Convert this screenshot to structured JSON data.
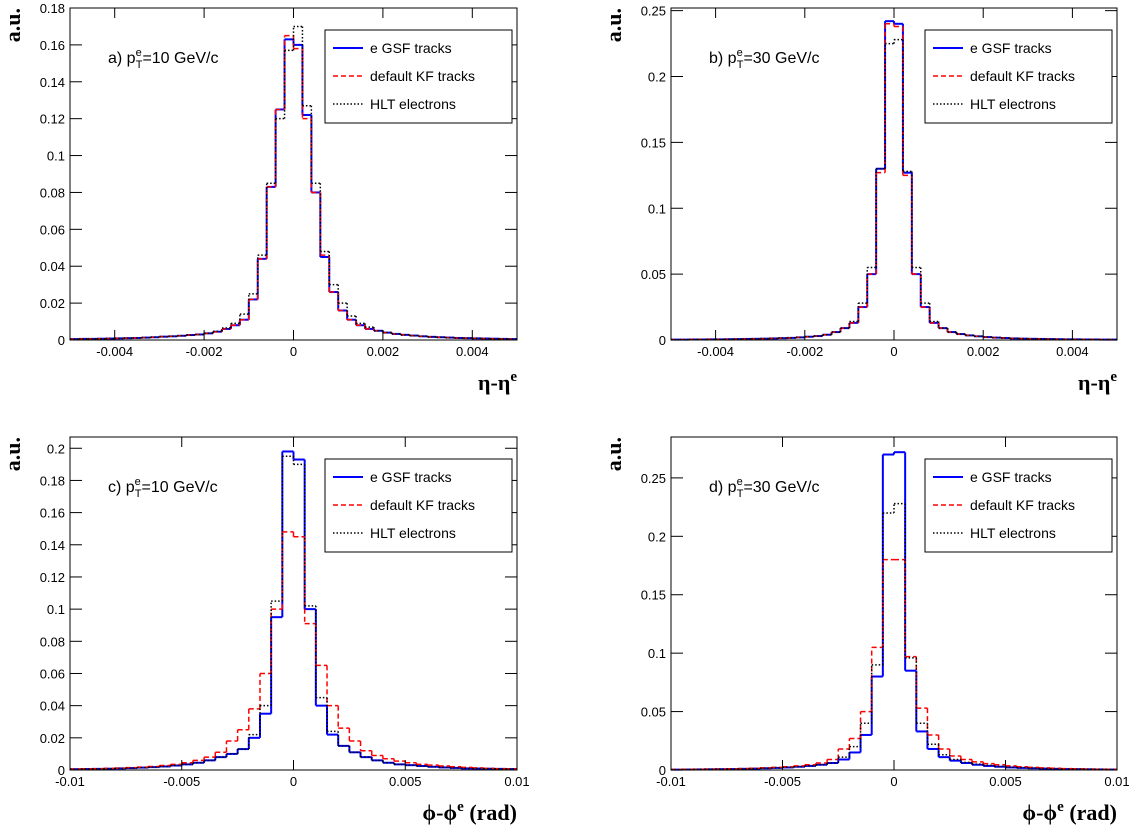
{
  "chart_data": [
    {
      "type": "histogram",
      "ylabel": "a.u.",
      "xlabel": [
        "η-η",
        "e"
      ],
      "annotation": [
        "a) p",
        "e",
        "T",
        "=10 GeV/c"
      ],
      "xlim": [
        -0.005,
        0.005
      ],
      "xticks": [
        -0.004,
        -0.002,
        0,
        0.002,
        0.004
      ],
      "ylim": [
        0,
        0.18
      ],
      "yticks": [
        0,
        0.02,
        0.04,
        0.06,
        0.08,
        0.1,
        0.12,
        0.14,
        0.16,
        0.18
      ],
      "legend": "upper right",
      "bins": [
        -0.005,
        -0.0048,
        -0.0046,
        -0.0044,
        -0.0042,
        -0.004,
        -0.0038,
        -0.0036,
        -0.0034,
        -0.0032,
        -0.003,
        -0.0028,
        -0.0026,
        -0.0024,
        -0.0022,
        -0.002,
        -0.0018,
        -0.0016,
        -0.0014,
        -0.0012,
        -0.001,
        -0.0008,
        -0.0006,
        -0.0004,
        -0.0002,
        0,
        0.0002,
        0.0004,
        0.0006,
        0.0008,
        0.001,
        0.0012,
        0.0014,
        0.0016,
        0.0018,
        0.002,
        0.0022,
        0.0024,
        0.0026,
        0.0028,
        0.003,
        0.0032,
        0.0034,
        0.0036,
        0.0038,
        0.004,
        0.0042,
        0.0044,
        0.0046,
        0.0048,
        0.005
      ],
      "series": [
        {
          "name": "e GSF tracks",
          "color": "#0000ff",
          "style": "solid",
          "values": [
            0.0005,
            0.0006,
            0.0006,
            0.0007,
            0.0008,
            0.0009,
            0.001,
            0.0011,
            0.0013,
            0.0015,
            0.0018,
            0.002,
            0.0023,
            0.0027,
            0.003,
            0.0036,
            0.0045,
            0.006,
            0.008,
            0.011,
            0.022,
            0.044,
            0.083,
            0.125,
            0.163,
            0.16,
            0.122,
            0.08,
            0.045,
            0.026,
            0.016,
            0.011,
            0.008,
            0.006,
            0.005,
            0.004,
            0.0033,
            0.0028,
            0.0024,
            0.002,
            0.0017,
            0.0015,
            0.0013,
            0.0011,
            0.001,
            0.0009,
            0.0008,
            0.0007,
            0.0006,
            0.0005
          ]
        },
        {
          "name": "default KF tracks",
          "color": "#ff0000",
          "style": "dashed",
          "values": [
            0.0005,
            0.0006,
            0.0006,
            0.0007,
            0.0008,
            0.0009,
            0.001,
            0.0011,
            0.0013,
            0.0015,
            0.0018,
            0.002,
            0.0023,
            0.0027,
            0.003,
            0.0036,
            0.0045,
            0.006,
            0.008,
            0.011,
            0.022,
            0.044,
            0.083,
            0.125,
            0.165,
            0.158,
            0.12,
            0.08,
            0.046,
            0.026,
            0.016,
            0.011,
            0.008,
            0.006,
            0.005,
            0.004,
            0.0033,
            0.0028,
            0.0024,
            0.002,
            0.0017,
            0.0015,
            0.0013,
            0.0011,
            0.001,
            0.0009,
            0.0008,
            0.0007,
            0.0006,
            0.0005
          ]
        },
        {
          "name": "HLT electrons",
          "color": "#000000",
          "style": "dotted",
          "values": [
            0.0005,
            0.0006,
            0.0006,
            0.0007,
            0.0008,
            0.0009,
            0.001,
            0.0011,
            0.0013,
            0.0015,
            0.0018,
            0.002,
            0.0023,
            0.0027,
            0.003,
            0.0037,
            0.0047,
            0.0065,
            0.009,
            0.014,
            0.025,
            0.046,
            0.085,
            0.12,
            0.157,
            0.17,
            0.127,
            0.085,
            0.048,
            0.03,
            0.02,
            0.013,
            0.009,
            0.007,
            0.005,
            0.004,
            0.0033,
            0.0028,
            0.0024,
            0.002,
            0.0017,
            0.0015,
            0.0013,
            0.0011,
            0.001,
            0.0009,
            0.0008,
            0.0007,
            0.0006,
            0.0005
          ]
        }
      ]
    },
    {
      "type": "histogram",
      "ylabel": "a.u.",
      "xlabel": [
        "η-η",
        "e"
      ],
      "annotation": [
        "b) p",
        "e",
        "T",
        "=30 GeV/c"
      ],
      "xlim": [
        -0.005,
        0.005
      ],
      "xticks": [
        -0.004,
        -0.002,
        0,
        0.002,
        0.004
      ],
      "ylim": [
        0,
        0.252
      ],
      "yticks": [
        0,
        0.05,
        0.1,
        0.15,
        0.2,
        0.25
      ],
      "legend": "upper right",
      "bins": [
        -0.005,
        -0.0048,
        -0.0046,
        -0.0044,
        -0.0042,
        -0.004,
        -0.0038,
        -0.0036,
        -0.0034,
        -0.0032,
        -0.003,
        -0.0028,
        -0.0026,
        -0.0024,
        -0.0022,
        -0.002,
        -0.0018,
        -0.0016,
        -0.0014,
        -0.0012,
        -0.001,
        -0.0008,
        -0.0006,
        -0.0004,
        -0.0002,
        0,
        0.0002,
        0.0004,
        0.0006,
        0.0008,
        0.001,
        0.0012,
        0.0014,
        0.0016,
        0.0018,
        0.002,
        0.0022,
        0.0024,
        0.0026,
        0.0028,
        0.003,
        0.0032,
        0.0034,
        0.0036,
        0.0038,
        0.004,
        0.0042,
        0.0044,
        0.0046,
        0.0048,
        0.005
      ],
      "series": [
        {
          "name": "e GSF tracks",
          "color": "#0000ff",
          "style": "solid",
          "values": [
            0.0003,
            0.0003,
            0.0004,
            0.0004,
            0.0005,
            0.0005,
            0.0006,
            0.0007,
            0.0008,
            0.0009,
            0.001,
            0.0012,
            0.0014,
            0.0016,
            0.002,
            0.0025,
            0.003,
            0.004,
            0.006,
            0.009,
            0.013,
            0.025,
            0.05,
            0.13,
            0.242,
            0.24,
            0.127,
            0.05,
            0.025,
            0.013,
            0.009,
            0.006,
            0.0045,
            0.0035,
            0.0028,
            0.0022,
            0.0018,
            0.0015,
            0.0012,
            0.001,
            0.0009,
            0.0008,
            0.0007,
            0.0006,
            0.0005,
            0.0005,
            0.0004,
            0.0004,
            0.0003,
            0.0003
          ]
        },
        {
          "name": "default KF tracks",
          "color": "#ff0000",
          "style": "dashed",
          "values": [
            0.0003,
            0.0003,
            0.0004,
            0.0004,
            0.0005,
            0.0005,
            0.0006,
            0.0007,
            0.0008,
            0.0009,
            0.001,
            0.0012,
            0.0014,
            0.0016,
            0.002,
            0.0025,
            0.003,
            0.004,
            0.006,
            0.009,
            0.013,
            0.025,
            0.05,
            0.127,
            0.24,
            0.238,
            0.125,
            0.05,
            0.025,
            0.013,
            0.009,
            0.006,
            0.0045,
            0.0035,
            0.0028,
            0.0022,
            0.0018,
            0.0015,
            0.0012,
            0.001,
            0.0009,
            0.0008,
            0.0007,
            0.0006,
            0.0005,
            0.0005,
            0.0004,
            0.0004,
            0.0003,
            0.0003
          ]
        },
        {
          "name": "HLT electrons",
          "color": "#000000",
          "style": "dotted",
          "values": [
            0.0003,
            0.0003,
            0.0004,
            0.0004,
            0.0005,
            0.0005,
            0.0006,
            0.0007,
            0.0008,
            0.0009,
            0.001,
            0.0012,
            0.0014,
            0.0016,
            0.002,
            0.0025,
            0.003,
            0.004,
            0.006,
            0.009,
            0.014,
            0.028,
            0.055,
            0.13,
            0.225,
            0.228,
            0.128,
            0.055,
            0.028,
            0.014,
            0.009,
            0.006,
            0.0045,
            0.0035,
            0.0028,
            0.0022,
            0.0018,
            0.0015,
            0.0012,
            0.001,
            0.0009,
            0.0008,
            0.0007,
            0.0006,
            0.0005,
            0.0005,
            0.0004,
            0.0004,
            0.0003,
            0.0003
          ]
        }
      ]
    },
    {
      "type": "histogram",
      "ylabel": "a.u.",
      "xlabel": [
        "ϕ-ϕ",
        "e",
        " (rad)"
      ],
      "annotation": [
        "c) p",
        "e",
        "T",
        "=10 GeV/c"
      ],
      "xlim": [
        -0.01,
        0.01
      ],
      "xticks": [
        -0.01,
        -0.005,
        0,
        0.005,
        0.01
      ],
      "ylim": [
        0,
        0.207
      ],
      "yticks": [
        0,
        0.02,
        0.04,
        0.06,
        0.08,
        0.1,
        0.12,
        0.14,
        0.16,
        0.18,
        0.2
      ],
      "legend": "upper right",
      "bins": [
        -0.01,
        -0.0095,
        -0.009,
        -0.0085,
        -0.008,
        -0.0075,
        -0.007,
        -0.0065,
        -0.006,
        -0.0055,
        -0.005,
        -0.0045,
        -0.004,
        -0.0035,
        -0.003,
        -0.0025,
        -0.002,
        -0.0015,
        -0.001,
        -0.0005,
        0,
        0.0005,
        0.001,
        0.0015,
        0.002,
        0.0025,
        0.003,
        0.0035,
        0.004,
        0.0045,
        0.005,
        0.0055,
        0.006,
        0.0065,
        0.007,
        0.0075,
        0.008,
        0.0085,
        0.009,
        0.0095,
        0.01
      ],
      "series": [
        {
          "name": "e GSF tracks",
          "color": "#0000ff",
          "style": "solid",
          "values": [
            0.0005,
            0.0006,
            0.0007,
            0.0008,
            0.001,
            0.0012,
            0.0015,
            0.0018,
            0.0022,
            0.0028,
            0.0035,
            0.0045,
            0.006,
            0.008,
            0.01,
            0.013,
            0.02,
            0.035,
            0.095,
            0.198,
            0.193,
            0.1,
            0.04,
            0.022,
            0.015,
            0.011,
            0.008,
            0.006,
            0.0045,
            0.0035,
            0.003,
            0.0025,
            0.002,
            0.0016,
            0.0013,
            0.001,
            0.0009,
            0.0008,
            0.0007,
            0.0006
          ]
        },
        {
          "name": "default KF tracks",
          "color": "#ff0000",
          "style": "dashed",
          "values": [
            0.0006,
            0.0007,
            0.0008,
            0.001,
            0.0012,
            0.0015,
            0.0018,
            0.0022,
            0.0028,
            0.0035,
            0.0045,
            0.006,
            0.008,
            0.011,
            0.018,
            0.025,
            0.038,
            0.06,
            0.1,
            0.148,
            0.145,
            0.091,
            0.065,
            0.04,
            0.026,
            0.018,
            0.012,
            0.009,
            0.007,
            0.0055,
            0.0045,
            0.0035,
            0.003,
            0.0025,
            0.002,
            0.0016,
            0.0013,
            0.001,
            0.0008,
            0.0007
          ]
        },
        {
          "name": "HLT electrons",
          "color": "#000000",
          "style": "dotted",
          "values": [
            0.0005,
            0.0006,
            0.0007,
            0.0008,
            0.001,
            0.0012,
            0.0015,
            0.0018,
            0.0022,
            0.0028,
            0.0035,
            0.0045,
            0.006,
            0.008,
            0.01,
            0.013,
            0.022,
            0.04,
            0.105,
            0.195,
            0.19,
            0.102,
            0.045,
            0.024,
            0.015,
            0.011,
            0.008,
            0.006,
            0.0045,
            0.0035,
            0.003,
            0.0025,
            0.002,
            0.0016,
            0.0013,
            0.001,
            0.0009,
            0.0008,
            0.0007,
            0.0006
          ]
        }
      ]
    },
    {
      "type": "histogram",
      "ylabel": "a.u.",
      "xlabel": [
        "ϕ-ϕ",
        "e",
        " (rad)"
      ],
      "annotation": [
        "d) p",
        "e",
        "T",
        "=30 GeV/c"
      ],
      "xlim": [
        -0.01,
        0.01
      ],
      "xticks": [
        -0.01,
        -0.005,
        0,
        0.005,
        0.01
      ],
      "ylim": [
        0,
        0.285
      ],
      "yticks": [
        0,
        0.05,
        0.1,
        0.15,
        0.2,
        0.25
      ],
      "legend": "upper right",
      "bins": [
        -0.01,
        -0.0095,
        -0.009,
        -0.0085,
        -0.008,
        -0.0075,
        -0.007,
        -0.0065,
        -0.006,
        -0.0055,
        -0.005,
        -0.0045,
        -0.004,
        -0.0035,
        -0.003,
        -0.0025,
        -0.002,
        -0.0015,
        -0.001,
        -0.0005,
        0,
        0.0005,
        0.001,
        0.0015,
        0.002,
        0.0025,
        0.003,
        0.0035,
        0.004,
        0.0045,
        0.005,
        0.0055,
        0.006,
        0.0065,
        0.007,
        0.0075,
        0.008,
        0.0085,
        0.009,
        0.0095,
        0.01
      ],
      "series": [
        {
          "name": "e GSF tracks",
          "color": "#0000ff",
          "style": "solid",
          "values": [
            0.0003,
            0.0004,
            0.0005,
            0.0006,
            0.0007,
            0.0008,
            0.001,
            0.0012,
            0.0015,
            0.0018,
            0.0022,
            0.0028,
            0.0035,
            0.0045,
            0.006,
            0.009,
            0.015,
            0.03,
            0.08,
            0.27,
            0.272,
            0.085,
            0.033,
            0.018,
            0.011,
            0.008,
            0.006,
            0.0045,
            0.0035,
            0.0028,
            0.0022,
            0.0018,
            0.0015,
            0.0012,
            0.001,
            0.0008,
            0.0007,
            0.0006,
            0.0005,
            0.0004
          ]
        },
        {
          "name": "default KF tracks",
          "color": "#ff0000",
          "style": "dashed",
          "values": [
            0.0004,
            0.0005,
            0.0006,
            0.0007,
            0.0008,
            0.001,
            0.0012,
            0.0015,
            0.0018,
            0.0022,
            0.0028,
            0.0035,
            0.0045,
            0.006,
            0.009,
            0.018,
            0.027,
            0.05,
            0.105,
            0.18,
            0.18,
            0.097,
            0.053,
            0.03,
            0.018,
            0.012,
            0.009,
            0.007,
            0.0055,
            0.0045,
            0.0035,
            0.0028,
            0.0022,
            0.0018,
            0.0015,
            0.0012,
            0.001,
            0.0008,
            0.0006,
            0.0005
          ]
        },
        {
          "name": "HLT electrons",
          "color": "#000000",
          "style": "dotted",
          "values": [
            0.0003,
            0.0004,
            0.0005,
            0.0006,
            0.0007,
            0.0008,
            0.001,
            0.0012,
            0.0015,
            0.0018,
            0.0022,
            0.0028,
            0.0035,
            0.0045,
            0.006,
            0.011,
            0.02,
            0.04,
            0.09,
            0.22,
            0.228,
            0.096,
            0.04,
            0.022,
            0.013,
            0.009,
            0.0065,
            0.005,
            0.004,
            0.003,
            0.0024,
            0.002,
            0.0016,
            0.0013,
            0.001,
            0.0008,
            0.0007,
            0.0006,
            0.0005,
            0.0004
          ]
        }
      ]
    }
  ]
}
